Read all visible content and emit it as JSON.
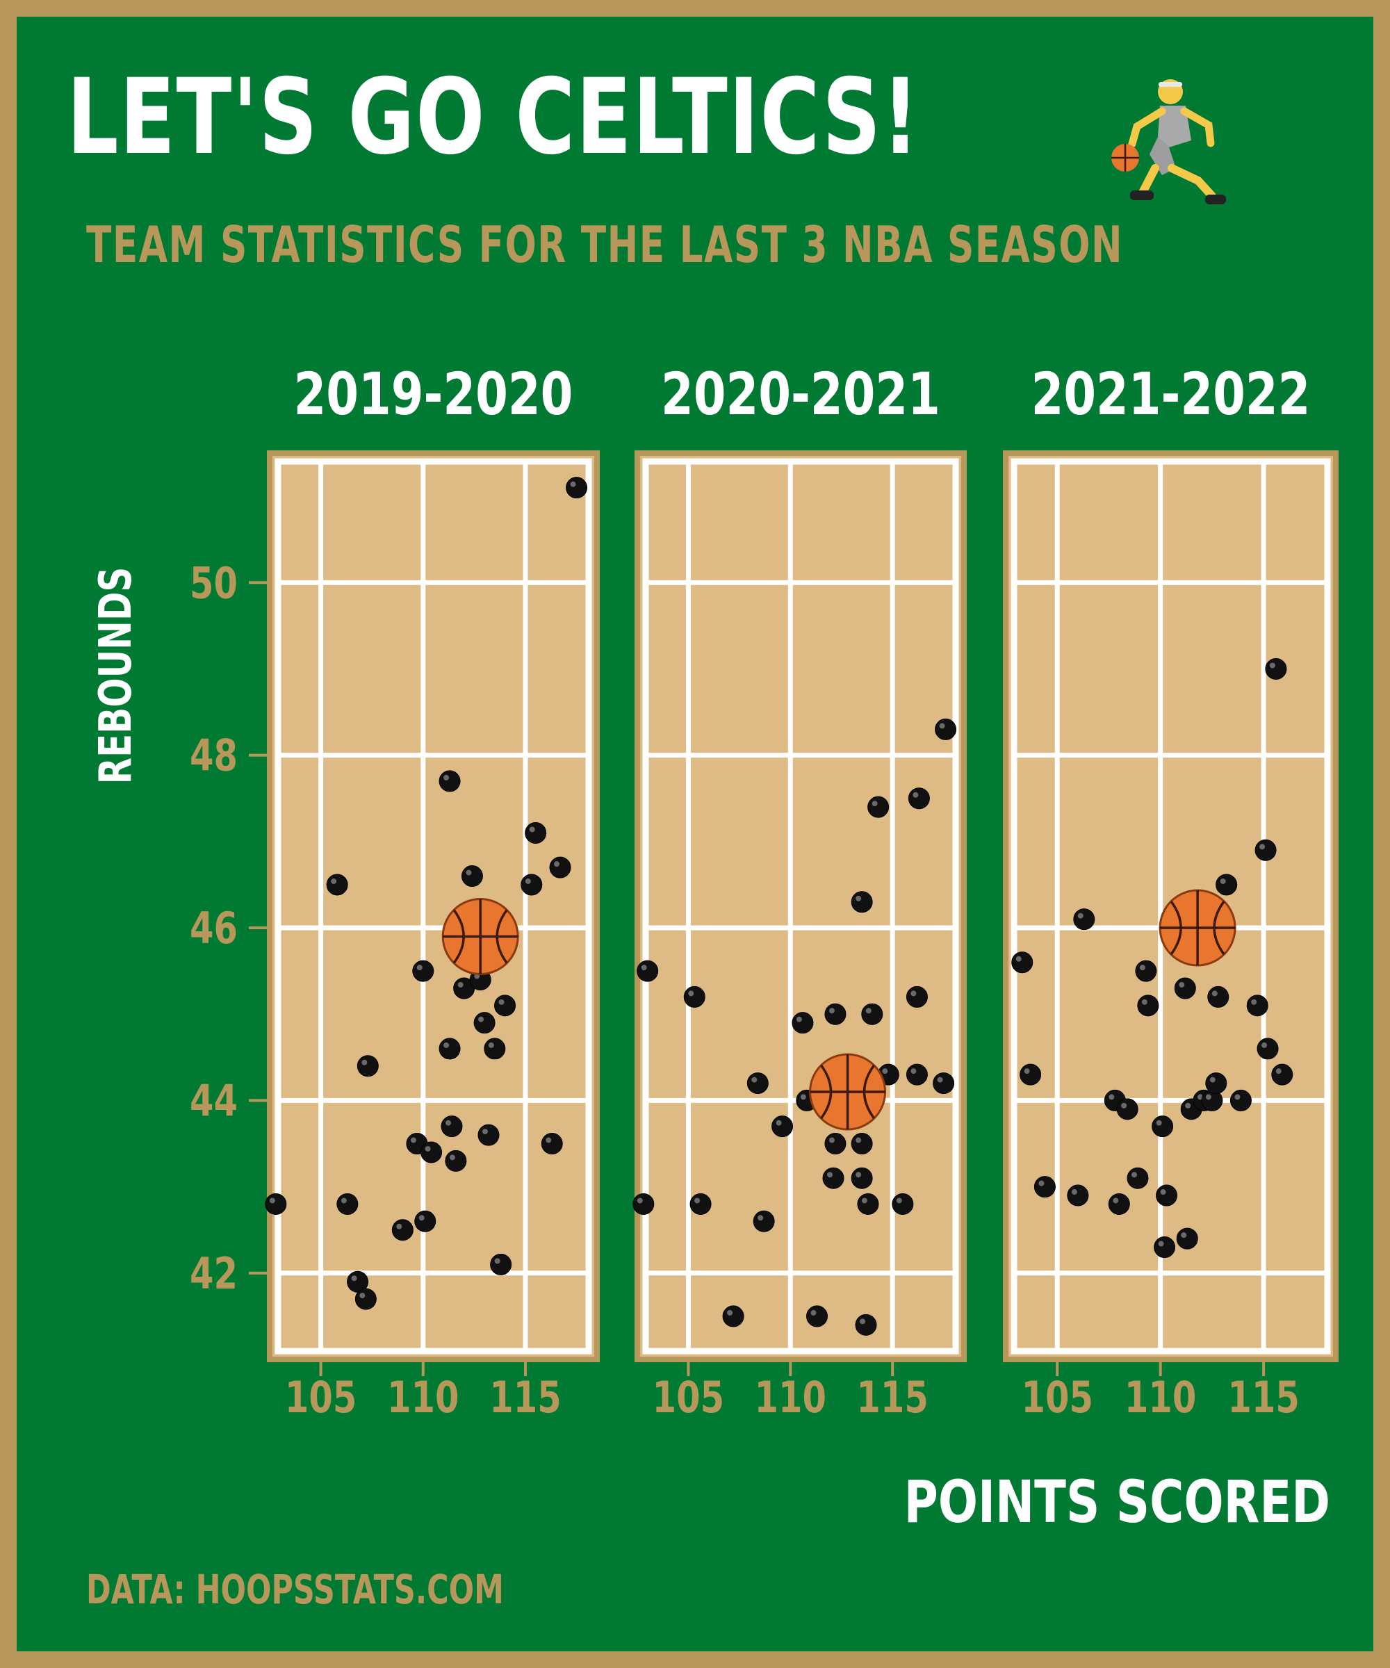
{
  "title": "LET'S GO CELTICS!",
  "subtitle": "TEAM STATISTICS FOR THE LAST 3 NBA SEASON",
  "source": "DATA: HOOPSSTATS.COM",
  "colors": {
    "background": "#007A33",
    "gold": "#B8975A",
    "court": "#DEBB85",
    "white": "#FFFFFF",
    "point": "#111111",
    "ball": "#E8762E"
  },
  "icons": {
    "title_icon": "basketball-player-icon",
    "team_marker": "basketball-icon"
  },
  "chart_data": {
    "type": "scatter",
    "xlabel": "POINTS SCORED",
    "ylabel": "REBOUNDS",
    "xlim": [
      102.5,
      118.5
    ],
    "ylim": [
      41,
      51.5
    ],
    "xticks": [
      105,
      110,
      115
    ],
    "yticks": [
      42,
      44,
      46,
      48,
      50
    ],
    "grid": true,
    "panels": [
      {
        "name": "2019-2020",
        "highlight": {
          "x": 112.8,
          "y": 45.9
        },
        "points": [
          [
            102.8,
            42.8
          ],
          [
            105.8,
            46.5
          ],
          [
            106.3,
            42.8
          ],
          [
            106.8,
            41.9
          ],
          [
            107.2,
            41.7
          ],
          [
            107.3,
            44.4
          ],
          [
            109.0,
            42.5
          ],
          [
            109.7,
            43.5
          ],
          [
            110.0,
            45.5
          ],
          [
            110.1,
            42.6
          ],
          [
            110.4,
            43.4
          ],
          [
            111.3,
            44.6
          ],
          [
            111.3,
            47.7
          ],
          [
            111.4,
            43.7
          ],
          [
            111.6,
            43.3
          ],
          [
            112.0,
            45.3
          ],
          [
            112.4,
            46.6
          ],
          [
            112.8,
            45.4
          ],
          [
            113.0,
            44.9
          ],
          [
            113.2,
            43.6
          ],
          [
            113.5,
            44.6
          ],
          [
            113.8,
            42.1
          ],
          [
            114.0,
            45.1
          ],
          [
            115.3,
            46.5
          ],
          [
            115.5,
            47.1
          ],
          [
            116.3,
            43.5
          ],
          [
            116.7,
            46.7
          ],
          [
            117.5,
            51.1
          ]
        ]
      },
      {
        "name": "2020-2021",
        "highlight": {
          "x": 112.8,
          "y": 44.1
        },
        "points": [
          [
            102.8,
            42.8
          ],
          [
            103.0,
            45.5
          ],
          [
            105.3,
            45.2
          ],
          [
            105.6,
            42.8
          ],
          [
            107.2,
            41.5
          ],
          [
            108.4,
            44.2
          ],
          [
            108.7,
            42.6
          ],
          [
            109.6,
            43.7
          ],
          [
            110.6,
            44.9
          ],
          [
            110.8,
            44.0
          ],
          [
            111.3,
            41.5
          ],
          [
            112.1,
            43.1
          ],
          [
            112.2,
            43.5
          ],
          [
            112.2,
            45.0
          ],
          [
            113.5,
            46.3
          ],
          [
            113.5,
            43.5
          ],
          [
            113.5,
            43.1
          ],
          [
            113.7,
            41.4
          ],
          [
            113.8,
            42.8
          ],
          [
            114.0,
            45.0
          ],
          [
            114.3,
            47.4
          ],
          [
            114.8,
            44.3
          ],
          [
            115.5,
            42.8
          ],
          [
            116.2,
            45.2
          ],
          [
            116.2,
            44.3
          ],
          [
            116.3,
            47.5
          ],
          [
            117.5,
            44.2
          ],
          [
            117.6,
            48.3
          ]
        ]
      },
      {
        "name": "2021-2022",
        "highlight": {
          "x": 111.8,
          "y": 46.0
        },
        "points": [
          [
            103.3,
            45.6
          ],
          [
            103.7,
            44.3
          ],
          [
            104.4,
            43.0
          ],
          [
            106.0,
            42.9
          ],
          [
            106.3,
            46.1
          ],
          [
            107.8,
            44.0
          ],
          [
            108.0,
            42.8
          ],
          [
            108.4,
            43.9
          ],
          [
            108.9,
            43.1
          ],
          [
            109.3,
            45.5
          ],
          [
            109.4,
            45.1
          ],
          [
            110.1,
            43.7
          ],
          [
            110.2,
            42.3
          ],
          [
            110.3,
            42.9
          ],
          [
            111.2,
            45.3
          ],
          [
            111.3,
            42.4
          ],
          [
            111.5,
            43.9
          ],
          [
            112.1,
            44.0
          ],
          [
            112.5,
            44.0
          ],
          [
            112.7,
            44.2
          ],
          [
            112.8,
            45.2
          ],
          [
            113.2,
            46.5
          ],
          [
            113.9,
            44.0
          ],
          [
            114.7,
            45.1
          ],
          [
            115.1,
            46.9
          ],
          [
            115.2,
            44.6
          ],
          [
            115.6,
            49.0
          ],
          [
            115.9,
            44.3
          ]
        ]
      }
    ]
  }
}
